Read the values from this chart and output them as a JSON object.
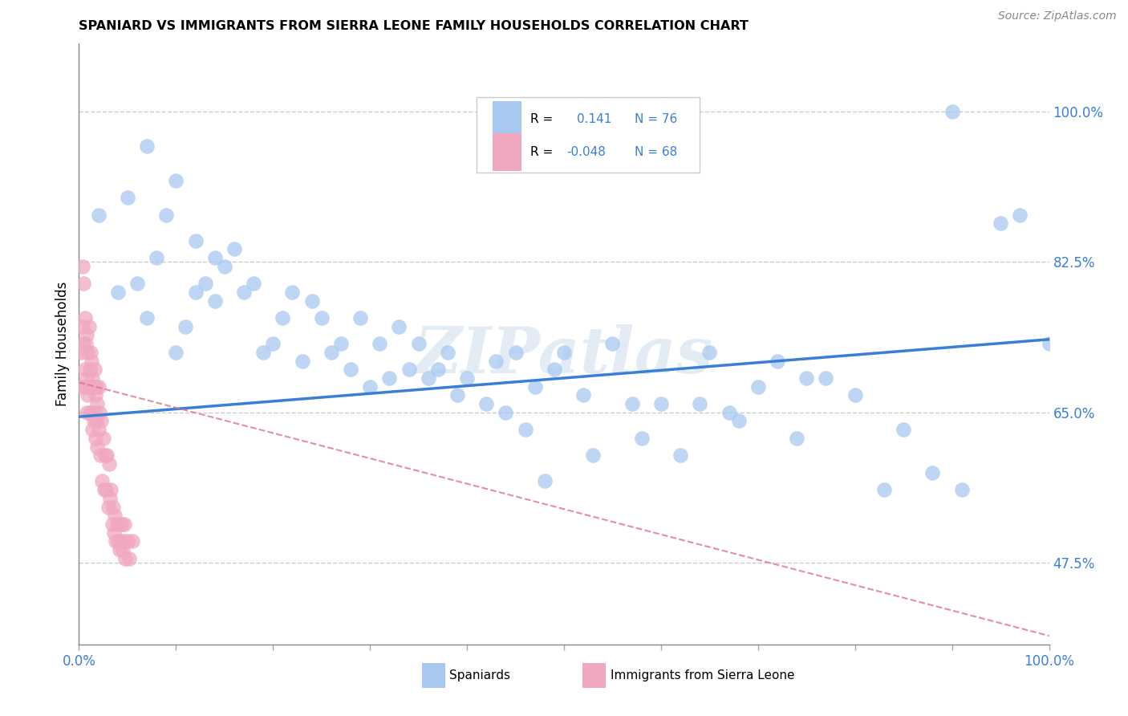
{
  "title": "SPANIARD VS IMMIGRANTS FROM SIERRA LEONE FAMILY HOUSEHOLDS CORRELATION CHART",
  "source": "Source: ZipAtlas.com",
  "ylabel": "Family Households",
  "ytick_labels": [
    "47.5%",
    "65.0%",
    "82.5%",
    "100.0%"
  ],
  "ytick_values": [
    0.475,
    0.65,
    0.825,
    1.0
  ],
  "xlim": [
    0.0,
    1.0
  ],
  "ylim": [
    0.38,
    1.08
  ],
  "r_spaniard": 0.141,
  "n_spaniard": 76,
  "r_sierra_leone": -0.048,
  "n_sierra_leone": 68,
  "spaniard_color": "#a8c8f0",
  "sierra_leone_color": "#f0a8c0",
  "spaniard_line_color": "#3a7fd5",
  "sierra_leone_line_color": "#e07090",
  "watermark": "ZIPatlas",
  "spaniard_scatter_x": [
    0.02,
    0.04,
    0.05,
    0.06,
    0.07,
    0.07,
    0.08,
    0.09,
    0.1,
    0.1,
    0.11,
    0.12,
    0.12,
    0.13,
    0.14,
    0.14,
    0.15,
    0.16,
    0.17,
    0.18,
    0.19,
    0.2,
    0.21,
    0.22,
    0.23,
    0.24,
    0.25,
    0.26,
    0.27,
    0.28,
    0.29,
    0.3,
    0.31,
    0.32,
    0.33,
    0.34,
    0.35,
    0.36,
    0.37,
    0.38,
    0.39,
    0.4,
    0.42,
    0.43,
    0.44,
    0.45,
    0.46,
    0.47,
    0.48,
    0.49,
    0.5,
    0.52,
    0.53,
    0.55,
    0.57,
    0.58,
    0.6,
    0.62,
    0.64,
    0.65,
    0.67,
    0.68,
    0.7,
    0.72,
    0.74,
    0.75,
    0.77,
    0.8,
    0.83,
    0.85,
    0.88,
    0.9,
    0.91,
    0.95,
    0.97,
    1.0
  ],
  "spaniard_scatter_y": [
    0.88,
    0.79,
    0.9,
    0.8,
    0.96,
    0.76,
    0.83,
    0.88,
    0.92,
    0.72,
    0.75,
    0.79,
    0.85,
    0.8,
    0.78,
    0.83,
    0.82,
    0.84,
    0.79,
    0.8,
    0.72,
    0.73,
    0.76,
    0.79,
    0.71,
    0.78,
    0.76,
    0.72,
    0.73,
    0.7,
    0.76,
    0.68,
    0.73,
    0.69,
    0.75,
    0.7,
    0.73,
    0.69,
    0.7,
    0.72,
    0.67,
    0.69,
    0.66,
    0.71,
    0.65,
    0.72,
    0.63,
    0.68,
    0.57,
    0.7,
    0.72,
    0.67,
    0.6,
    0.73,
    0.66,
    0.62,
    0.66,
    0.6,
    0.66,
    0.72,
    0.65,
    0.64,
    0.68,
    0.71,
    0.62,
    0.69,
    0.69,
    0.67,
    0.56,
    0.63,
    0.58,
    1.0,
    0.56,
    0.87,
    0.88,
    0.73
  ],
  "sierra_leone_scatter_x": [
    0.002,
    0.003,
    0.004,
    0.004,
    0.005,
    0.005,
    0.006,
    0.006,
    0.007,
    0.007,
    0.008,
    0.008,
    0.008,
    0.009,
    0.009,
    0.01,
    0.01,
    0.011,
    0.011,
    0.012,
    0.012,
    0.013,
    0.013,
    0.014,
    0.014,
    0.015,
    0.015,
    0.016,
    0.016,
    0.017,
    0.017,
    0.018,
    0.018,
    0.019,
    0.019,
    0.02,
    0.02,
    0.021,
    0.022,
    0.023,
    0.024,
    0.025,
    0.026,
    0.027,
    0.028,
    0.029,
    0.03,
    0.031,
    0.032,
    0.033,
    0.034,
    0.035,
    0.036,
    0.037,
    0.038,
    0.039,
    0.04,
    0.041,
    0.042,
    0.043,
    0.044,
    0.045,
    0.046,
    0.047,
    0.048,
    0.05,
    0.052,
    0.055
  ],
  "sierra_leone_scatter_y": [
    0.72,
    0.68,
    0.82,
    0.75,
    0.8,
    0.73,
    0.76,
    0.7,
    0.73,
    0.68,
    0.74,
    0.69,
    0.65,
    0.72,
    0.67,
    0.75,
    0.68,
    0.7,
    0.65,
    0.72,
    0.68,
    0.71,
    0.65,
    0.69,
    0.63,
    0.68,
    0.64,
    0.7,
    0.65,
    0.67,
    0.62,
    0.68,
    0.64,
    0.66,
    0.61,
    0.68,
    0.63,
    0.65,
    0.6,
    0.64,
    0.57,
    0.62,
    0.56,
    0.6,
    0.56,
    0.6,
    0.54,
    0.59,
    0.55,
    0.56,
    0.52,
    0.54,
    0.51,
    0.53,
    0.5,
    0.52,
    0.5,
    0.52,
    0.49,
    0.5,
    0.52,
    0.49,
    0.5,
    0.52,
    0.48,
    0.5,
    0.48,
    0.5
  ],
  "spaniard_trend_x": [
    0.0,
    1.0
  ],
  "spaniard_trend_y_start": 0.645,
  "spaniard_trend_y_end": 0.735,
  "sierra_leone_trend_x": [
    0.0,
    1.0
  ],
  "sierra_leone_trend_y_start": 0.685,
  "sierra_leone_trend_y_end": 0.39
}
